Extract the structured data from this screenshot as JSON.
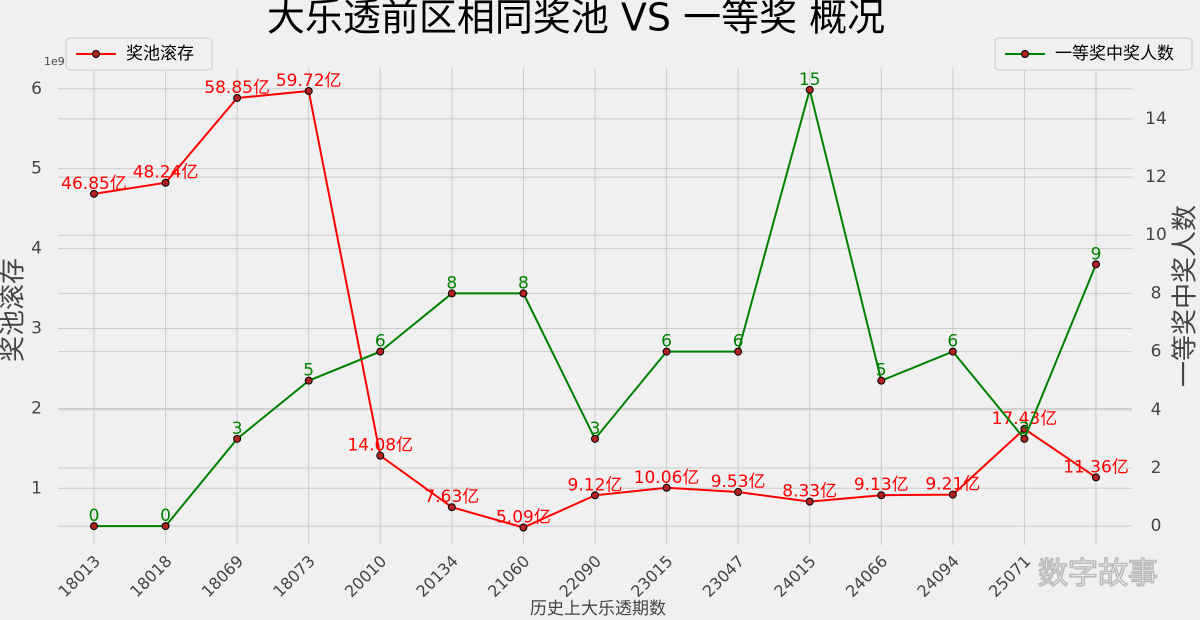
{
  "chart_data": {
    "type": "line",
    "title": "大乐透前区相同奖池 VS 一等奖 概况",
    "x_label": "历史上大乐透期数",
    "y_label": "奖池滚存",
    "y2_label": "一等奖中奖人数",
    "y_offset_label": "1e9",
    "watermark": "数字故事",
    "categories": [
      "18013",
      "18018",
      "18069",
      "18073",
      "20010",
      "20134",
      "21060",
      "22090",
      "23015",
      "23047",
      "24015",
      "24066",
      "24094",
      "25071",
      null
    ],
    "series": [
      {
        "name": "奖池滚存",
        "color": "#ff0000",
        "axis": "y",
        "legend_loc": "upper left",
        "values": [
          4.685,
          4.824,
          5.885,
          5.972,
          1.408,
          0.763,
          0.509,
          0.912,
          1.006,
          0.953,
          0.833,
          0.913,
          0.921,
          1.743,
          1.136
        ],
        "value_labels": [
          "46.85亿",
          "48.24亿",
          "58.85亿",
          "59.72亿",
          "14.08亿",
          "7.63亿",
          "5.09亿",
          "9.12亿",
          "10.06亿",
          "9.53亿",
          "8.33亿",
          "9.13亿",
          "9.21亿",
          "17.43亿",
          "11.36亿"
        ]
      },
      {
        "name": "一等奖中奖人数",
        "color": "#008000",
        "axis": "y2",
        "legend_loc": "upper right",
        "values": [
          0,
          0,
          3,
          5,
          6,
          8,
          8,
          3,
          6,
          6,
          15,
          5,
          6,
          3,
          9
        ]
      }
    ],
    "ylim": [
      0.29,
      6.26
    ],
    "yticks": [
      1,
      2,
      3,
      4,
      5,
      6
    ],
    "y2lim": [
      -0.65,
      15.75
    ],
    "y2ticks": [
      0,
      2,
      4,
      6,
      8,
      10,
      12,
      14
    ],
    "grid": true,
    "marker_color": "#b22222"
  }
}
